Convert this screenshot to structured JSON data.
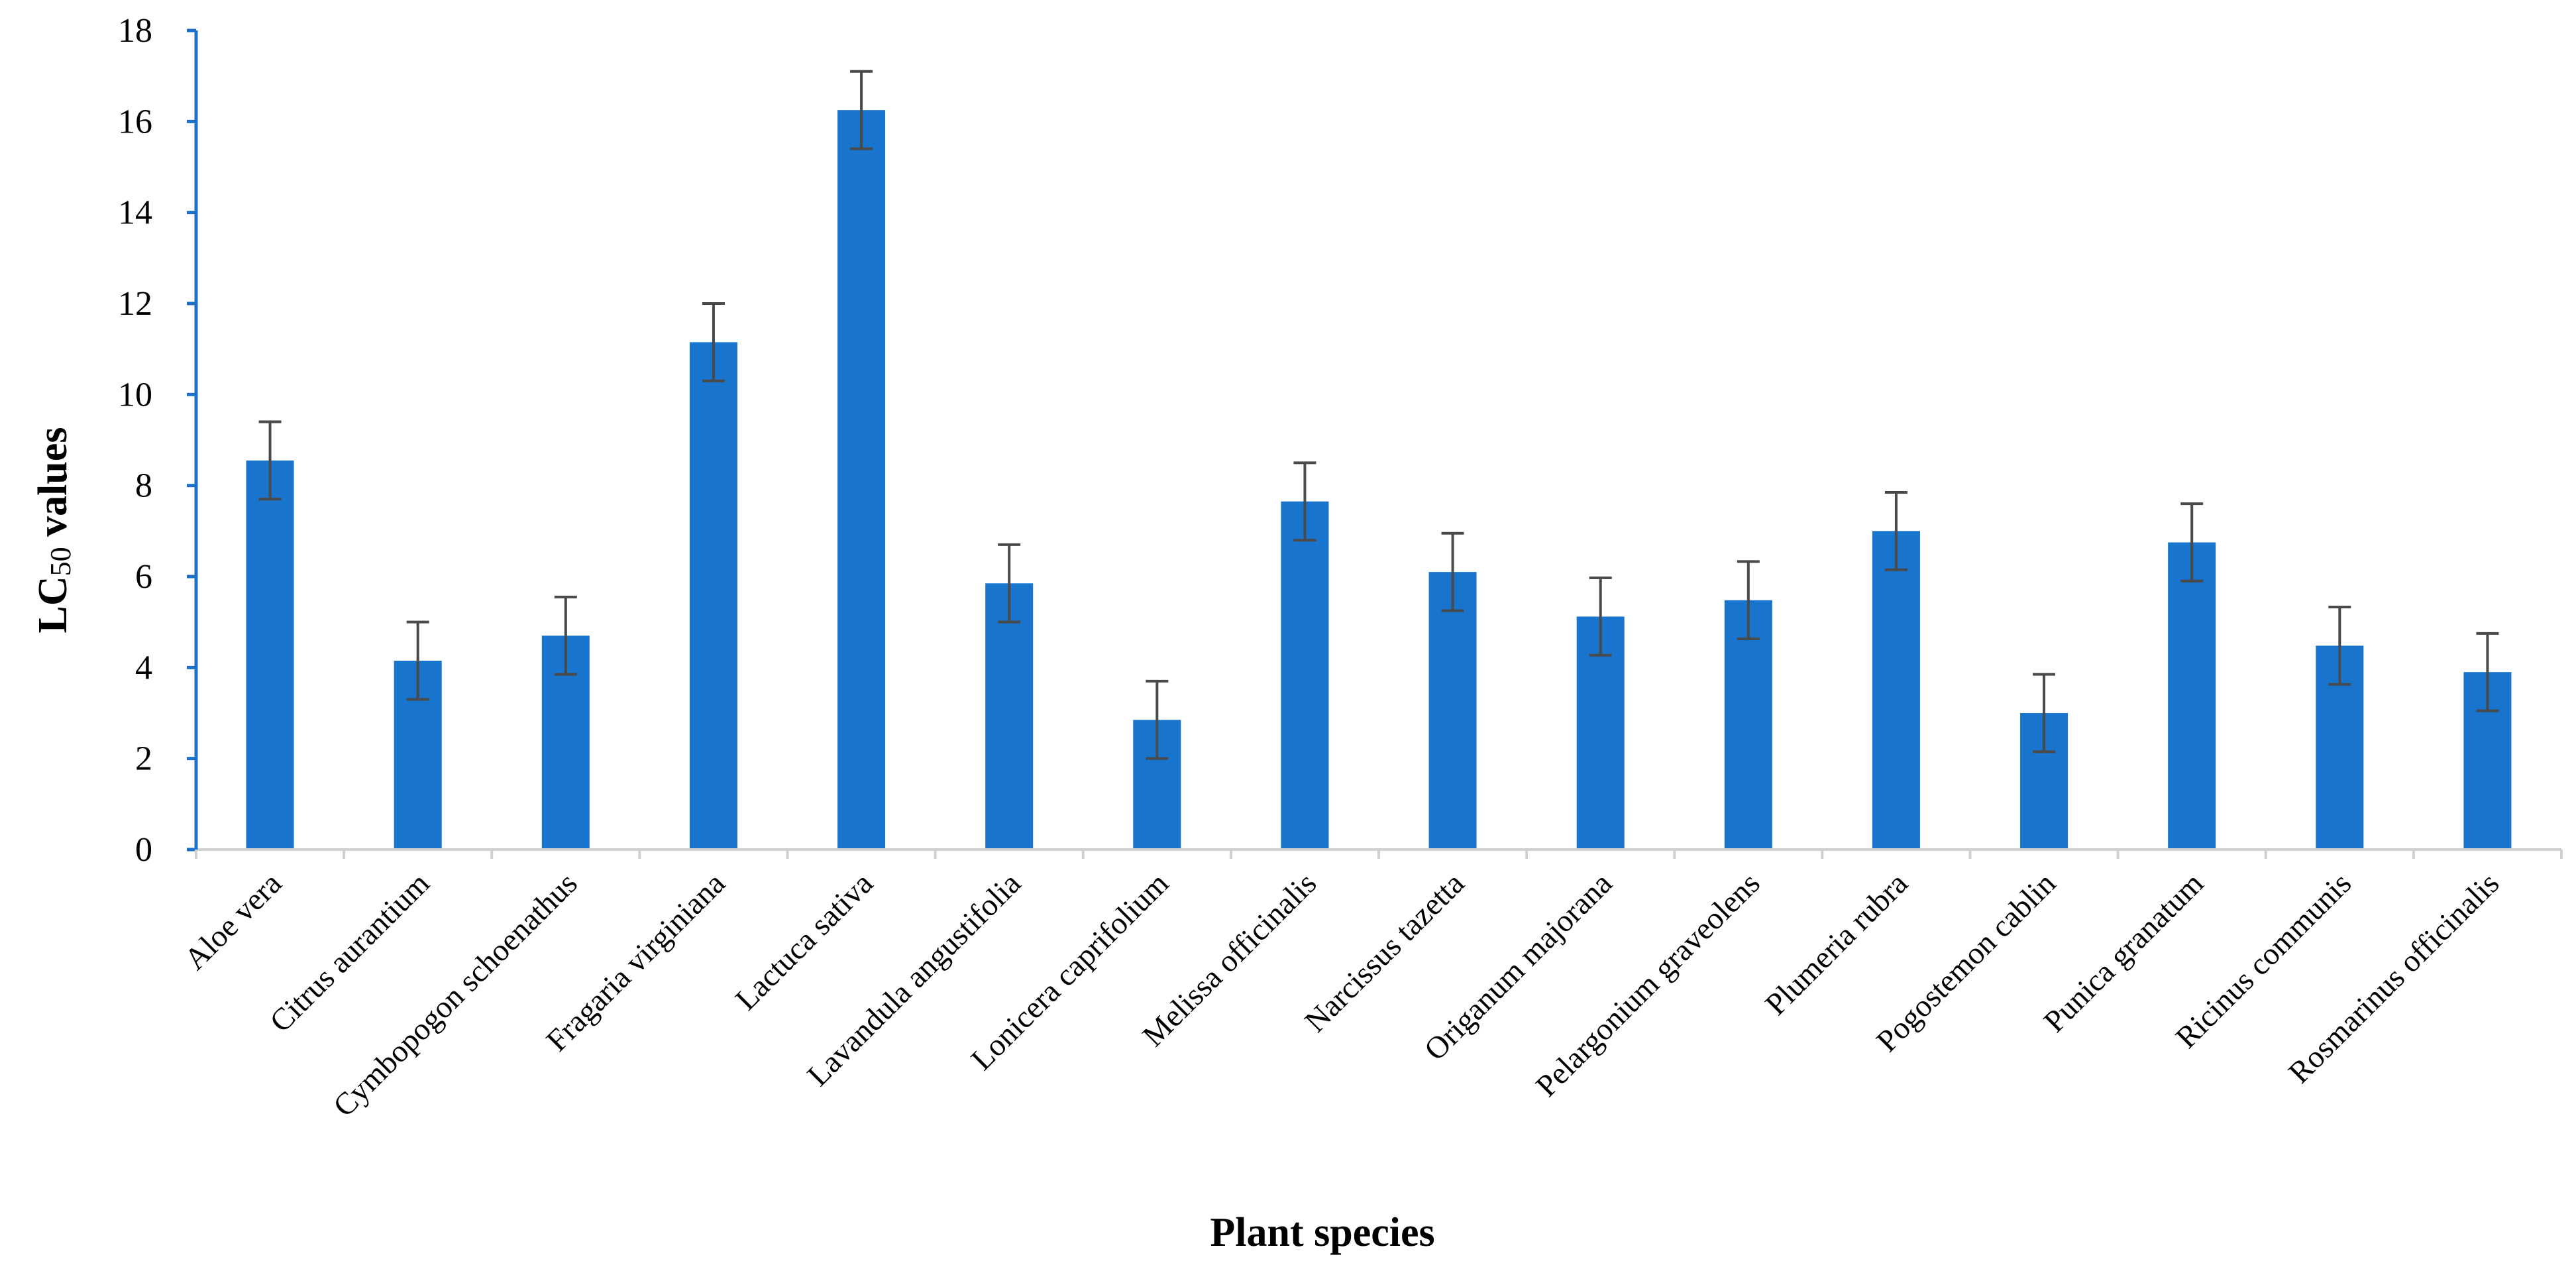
{
  "chart_data": {
    "type": "bar",
    "title": "",
    "xlabel": "Plant species",
    "ylabel": {
      "prefix": "LC",
      "subscript": "50",
      "suffix": " values"
    },
    "ylim": [
      0,
      18
    ],
    "yticks": [
      0,
      2,
      4,
      6,
      8,
      10,
      12,
      14,
      16,
      18
    ],
    "grid": false,
    "legend": "none",
    "bar_color": "#1874cd",
    "error_color": "#4a4a4a",
    "axis_color": "#1e6fc8",
    "categories": [
      "Aloe vera",
      "Citrus aurantium",
      "Cymbopogon schoenathus",
      "Fragaria virginiana",
      "Lactuca sativa",
      "Lavandula angustifolia",
      "Lonicera caprifolium",
      "Melissa officinalis",
      "Narcissus tazetta",
      "Origanum majorana",
      "Pelargonium graveolens",
      "Plumeria rubra",
      "Pogostemon cablin",
      "Punica granatum",
      "Ricinus communis",
      "Rosmarinus officinalis"
    ],
    "values": [
      8.55,
      4.15,
      4.7,
      11.15,
      16.25,
      5.85,
      2.85,
      7.65,
      6.1,
      5.12,
      5.48,
      7.0,
      3.0,
      6.75,
      4.48,
      3.9
    ],
    "errors": [
      0.85,
      0.85,
      0.85,
      0.85,
      0.85,
      0.85,
      0.85,
      0.85,
      0.85,
      0.85,
      0.85,
      0.85,
      0.85,
      0.85,
      0.85,
      0.85
    ]
  }
}
